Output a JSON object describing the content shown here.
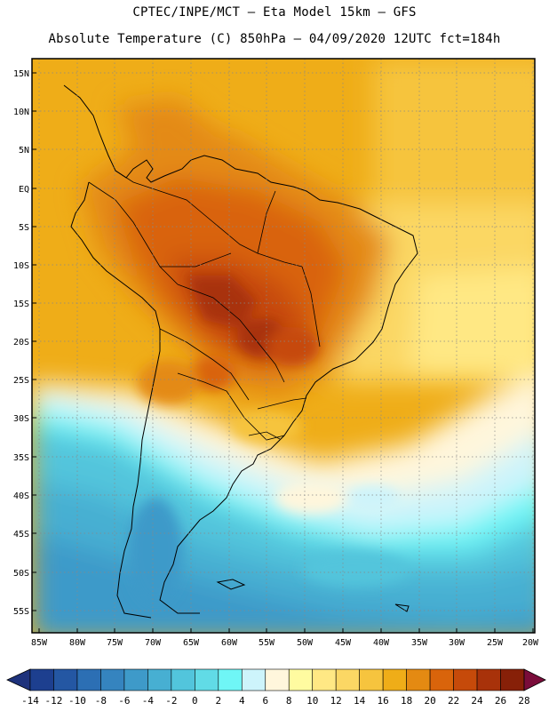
{
  "header": {
    "line1": "CPTEC/INPE/MCT –  Eta Model 15km – GFS",
    "line2": "Absolute Temperature (C) 850hPa – 04/09/2020 12UTC fct=184h"
  },
  "map": {
    "lat_labels": [
      "15N",
      "10N",
      "5N",
      "EQ",
      "5S",
      "10S",
      "15S",
      "20S",
      "25S",
      "30S",
      "35S",
      "40S",
      "45S",
      "50S",
      "55S"
    ],
    "lon_labels": [
      "85W",
      "80W",
      "75W",
      "70W",
      "65W",
      "60W",
      "55W",
      "50W",
      "45W",
      "40W",
      "35W",
      "30W",
      "25W",
      "20W"
    ]
  },
  "colorbar": {
    "labels": [
      "-14",
      "-12",
      "-10",
      "-8",
      "-6",
      "-4",
      "-2",
      "0",
      "2",
      "4",
      "6",
      "8",
      "10",
      "12",
      "14",
      "16",
      "18",
      "20",
      "22",
      "24",
      "26",
      "28"
    ],
    "colors": [
      "#1d3f8f",
      "#2457a3",
      "#2c6fb4",
      "#3584bf",
      "#3e9ac9",
      "#47afd2",
      "#52c5dc",
      "#61dbe6",
      "#6ff6f6",
      "#cdf4fb",
      "#fff6dc",
      "#fffba0",
      "#ffe884",
      "#fbd764",
      "#f6c43e",
      "#efad18",
      "#e48a12",
      "#d9640b",
      "#c64a0a",
      "#a8320a",
      "#872008"
    ],
    "under_color": "#1e327c",
    "over_color": "#7a0c3a"
  }
}
